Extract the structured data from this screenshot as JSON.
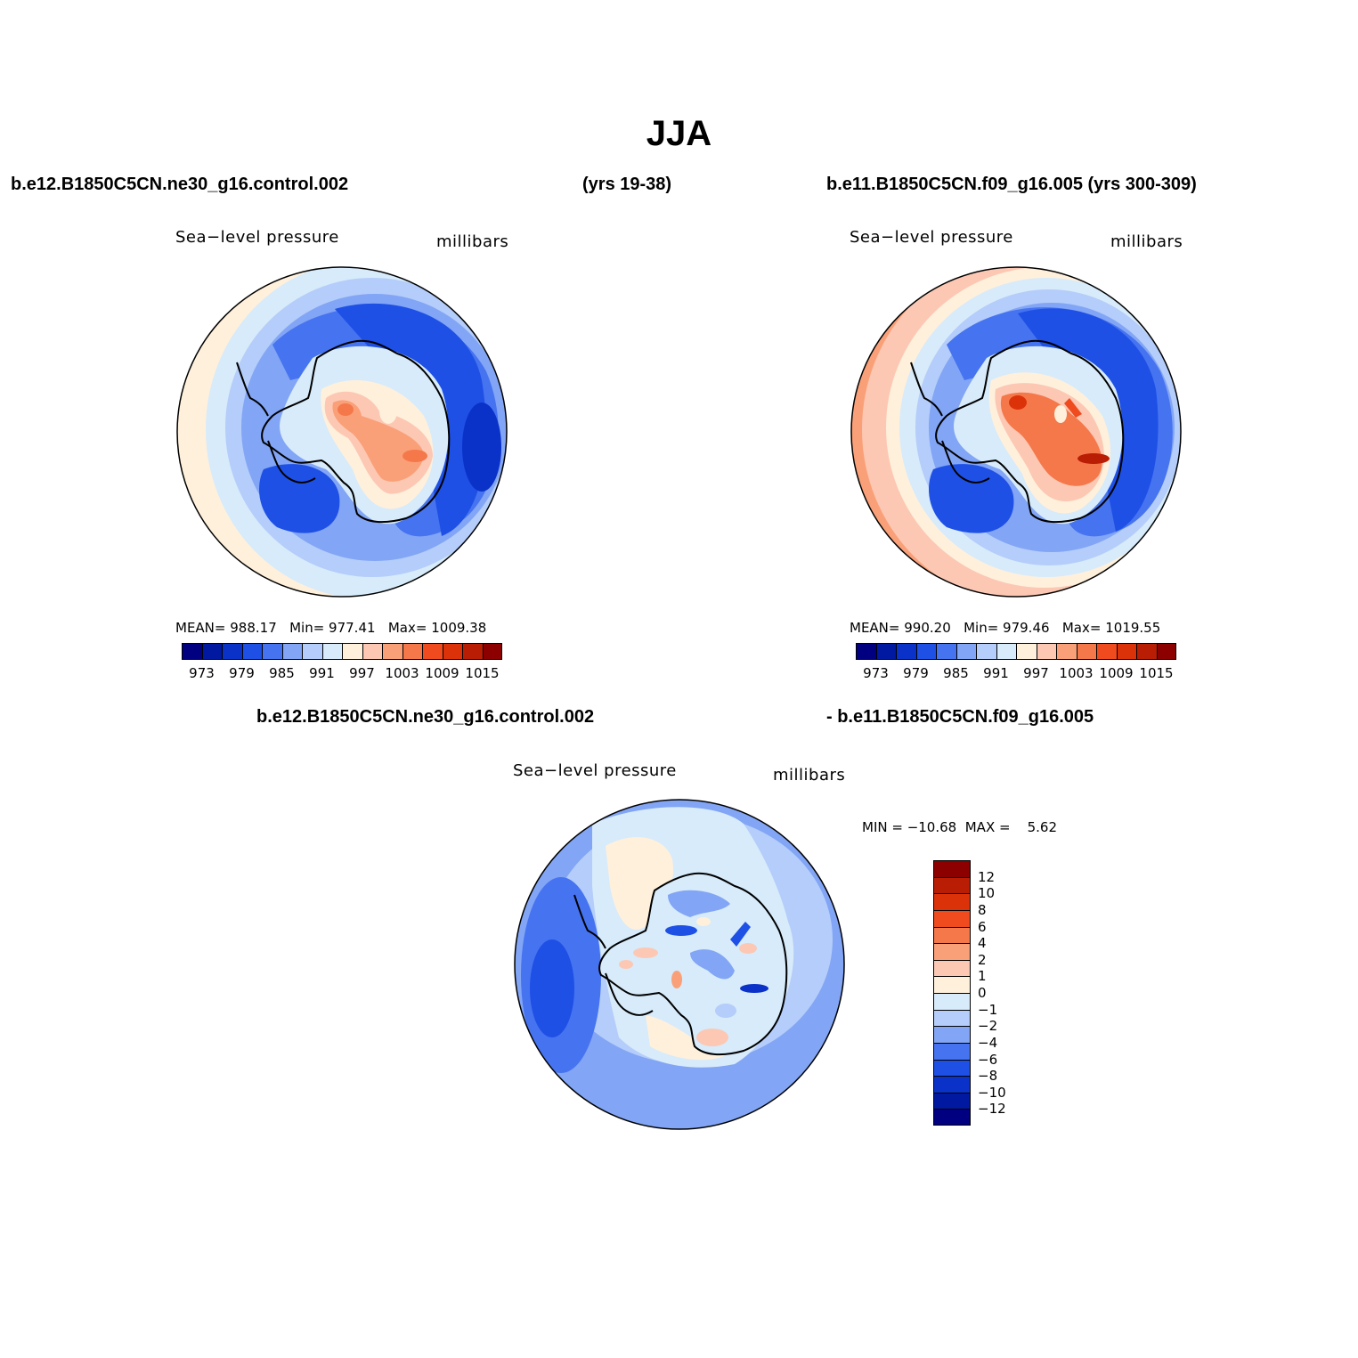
{
  "title": "JJA",
  "case1": {
    "name": "b.e12.B1850C5CN.ne30_g16.control.002",
    "years": "(yrs 19-38)"
  },
  "case2": {
    "name": "b.e11.B1850C5CN.f09_g16.005 (yrs 300-309)"
  },
  "diff": {
    "line1": "b.e12.B1850C5CN.ne30_g16.control.002",
    "line2": "- b.e11.B1850C5CN.f09_g16.005"
  },
  "panels": [
    {
      "id": "case1",
      "variable": "Sea−level pressure",
      "units": "millibars",
      "stats": {
        "mean_label": "MEAN=",
        "mean": "988.17",
        "min_label": "Min=",
        "min": "977.41",
        "max_label": "Max=",
        "max": "1009.38"
      }
    },
    {
      "id": "case2",
      "variable": "Sea−level pressure",
      "units": "millibars",
      "stats": {
        "mean_label": "MEAN=",
        "mean": "990.20",
        "min_label": "Min=",
        "min": "979.46",
        "max_label": "Max=",
        "max": "1019.55"
      }
    },
    {
      "id": "difference",
      "variable": "Sea−level pressure",
      "units": "millibars",
      "stats": {
        "text": "MIN = −10.68  MAX =    5.62"
      }
    }
  ],
  "colorbar_abs": {
    "colors": [
      "#000080",
      "#0019a0",
      "#0a32c8",
      "#1e50e6",
      "#4673f0",
      "#82a5f5",
      "#b4cdfa",
      "#d7ebfa",
      "#fff0dc",
      "#fcc8b4",
      "#faa078",
      "#f5784b",
      "#f04b1e",
      "#dc320a",
      "#b91e05",
      "#8c0000"
    ],
    "tick_labels": [
      "973",
      "979",
      "985",
      "991",
      "997",
      "1003",
      "1009",
      "1015"
    ]
  },
  "colorbar_diff": {
    "colors": [
      "#8c0000",
      "#b91e05",
      "#dc320a",
      "#f04b1e",
      "#f5784b",
      "#faa078",
      "#fcc8b4",
      "#fff0dc",
      "#d7ebfa",
      "#b4cdfa",
      "#82a5f5",
      "#4673f0",
      "#1e50e6",
      "#0a32c8",
      "#0019a0",
      "#000080"
    ],
    "tick_labels": [
      "12",
      "10",
      "8",
      "6",
      "4",
      "2",
      "1",
      "0",
      "−1",
      "−2",
      "−4",
      "−6",
      "−8",
      "−10",
      "−12"
    ]
  }
}
